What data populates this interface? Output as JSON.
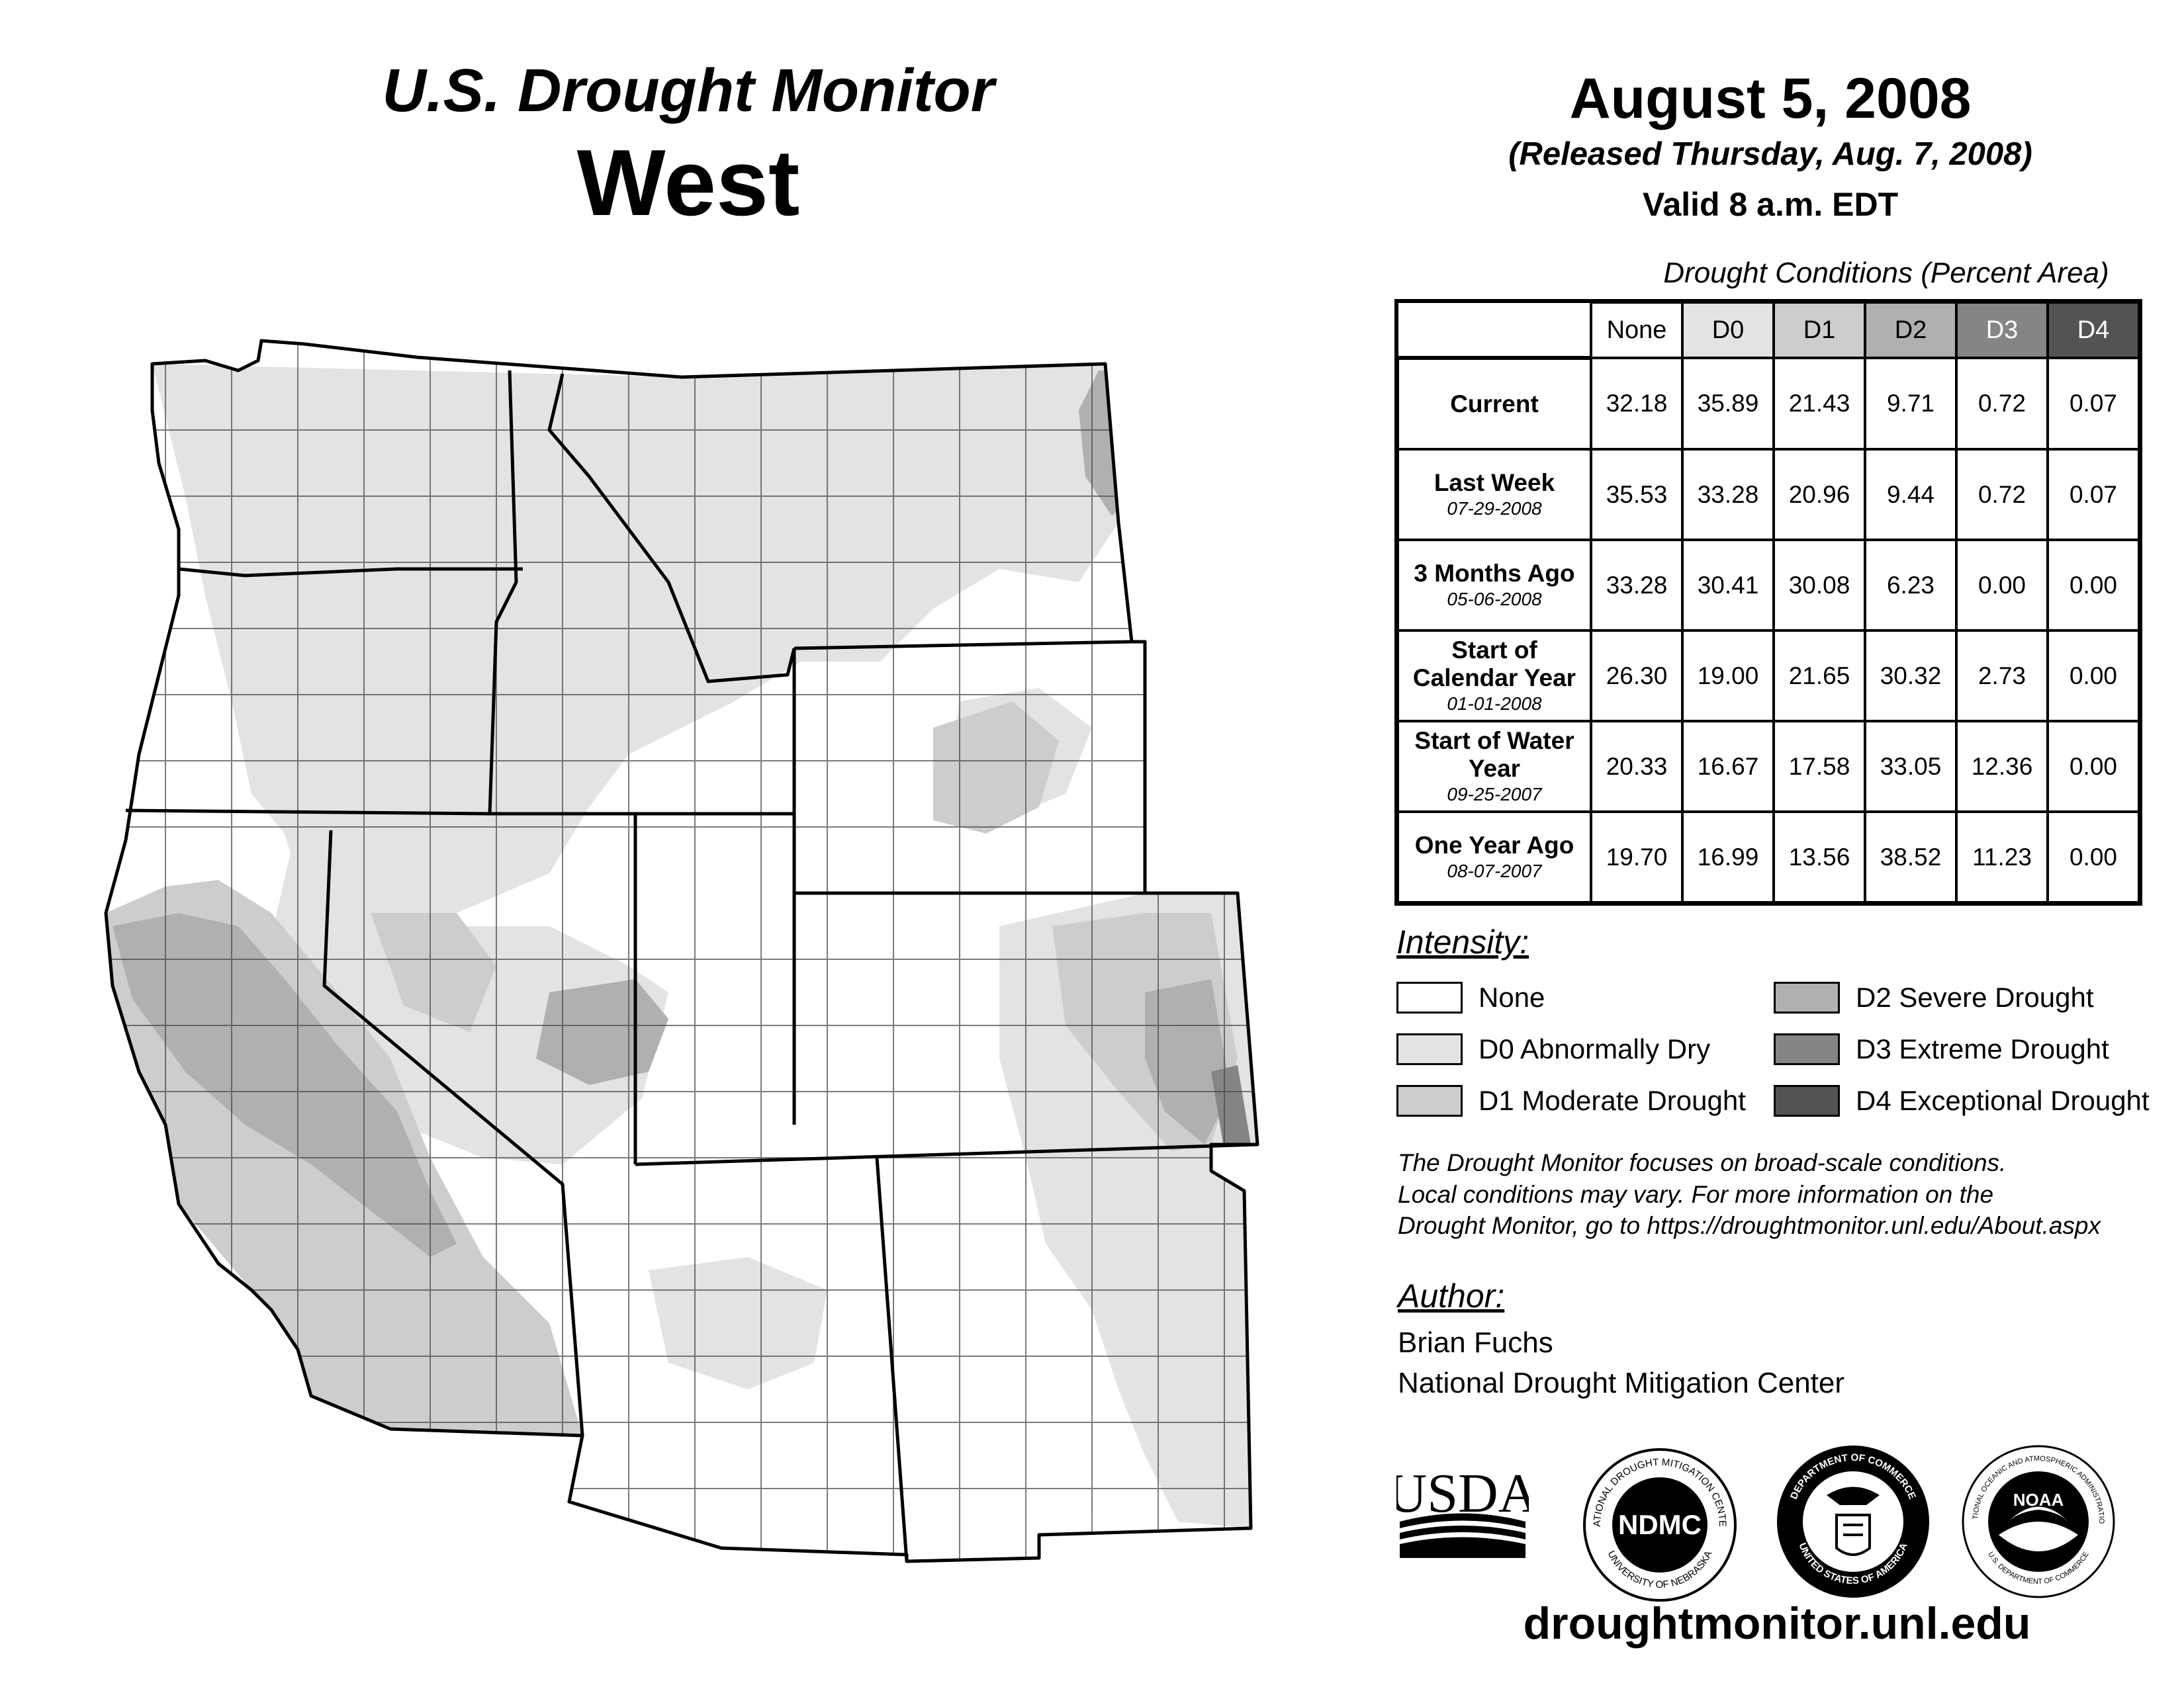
{
  "header": {
    "subtitle": "U.S. Drought Monitor",
    "region": "West",
    "date": "August 5, 2008",
    "released": "(Released Thursday, Aug. 7, 2008)",
    "valid": "Valid 8 a.m. EDT"
  },
  "table": {
    "caption": "Drought Conditions (Percent Area)",
    "columns": [
      "None",
      "D0",
      "D1",
      "D2",
      "D3",
      "D4"
    ],
    "column_colors": [
      "#ffffff",
      "#e3e3e3",
      "#cdcdcd",
      "#b0b0b0",
      "#858585",
      "#535353"
    ],
    "rows": [
      {
        "label": "Current",
        "date": "",
        "values": [
          "32.18",
          "35.89",
          "21.43",
          "9.71",
          "0.72",
          "0.07"
        ]
      },
      {
        "label": "Last Week",
        "date": "07-29-2008",
        "values": [
          "35.53",
          "33.28",
          "20.96",
          "9.44",
          "0.72",
          "0.07"
        ]
      },
      {
        "label": "3 Months Ago",
        "date": "05-06-2008",
        "values": [
          "33.28",
          "30.41",
          "30.08",
          "6.23",
          "0.00",
          "0.00"
        ]
      },
      {
        "label": "Start of Calendar Year",
        "date": "01-01-2008",
        "values": [
          "26.30",
          "19.00",
          "21.65",
          "30.32",
          "2.73",
          "0.00"
        ]
      },
      {
        "label": "Start of Water Year",
        "date": "09-25-2007",
        "values": [
          "20.33",
          "16.67",
          "17.58",
          "33.05",
          "12.36",
          "0.00"
        ]
      },
      {
        "label": "One Year Ago",
        "date": "08-07-2007",
        "values": [
          "19.70",
          "16.99",
          "13.56",
          "38.52",
          "11.23",
          "0.00"
        ]
      }
    ]
  },
  "legend": {
    "title": "Intensity:",
    "items": [
      {
        "label": "None",
        "color": "#ffffff"
      },
      {
        "label": "D0 Abnormally Dry",
        "color": "#e3e3e3"
      },
      {
        "label": "D1 Moderate Drought",
        "color": "#cdcdcd"
      },
      {
        "label": "D2 Severe Drought",
        "color": "#b0b0b0"
      },
      {
        "label": "D3 Extreme Drought",
        "color": "#858585"
      },
      {
        "label": "D4 Exceptional Drought",
        "color": "#535353"
      }
    ]
  },
  "notes": [
    "The Drought Monitor focuses on broad-scale conditions.",
    "Local conditions may vary. For more information on the",
    "Drought Monitor, go to https://droughtmonitor.unl.edu/About.aspx"
  ],
  "author": {
    "title": "Author:",
    "name": "Brian Fuchs",
    "org": "National Drought Mitigation Center"
  },
  "logos": {
    "usda": "USDA",
    "ndmc": "NDMC",
    "ndmc_ring_top": "NATIONAL DROUGHT MITIGATION CENTER",
    "ndmc_ring_bottom": "UNIVERSITY OF NEBRASKA",
    "doc_ring_top": "DEPARTMENT OF COMMERCE",
    "doc_ring_bottom": "UNITED STATES OF AMERICA",
    "noaa": "NOAA",
    "noaa_ring_top": "NATIONAL OCEANIC AND ATMOSPHERIC ADMINISTRATION",
    "noaa_ring_bottom": "U.S. DEPARTMENT OF COMMERCE"
  },
  "site_url": "droughtmonitor.unl.edu"
}
